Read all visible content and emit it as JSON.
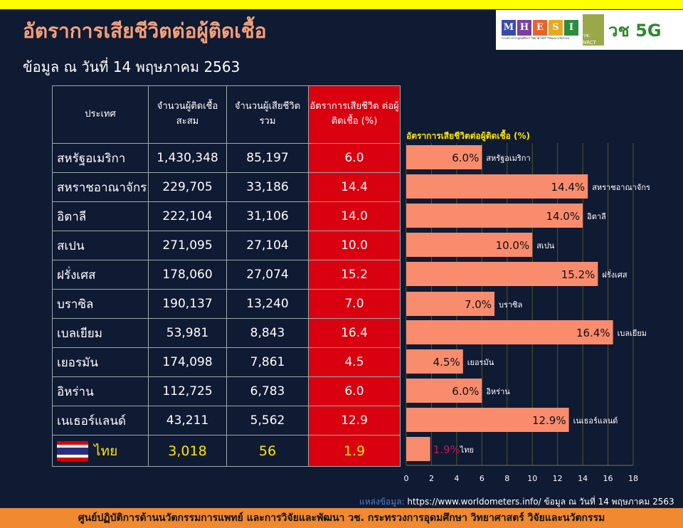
{
  "header": {
    "title": "อัตราการเสียชีวิตต่อผู้ติดเชื้อ",
    "subtitle": "ข้อมูล ณ วันที่ 14 พฤษภาคม 2563",
    "logo_letters": [
      "M",
      "H",
      "E",
      "S",
      "I"
    ],
    "logo_sub": "กระทรวงการอุดมศึกษา วิทยาศาสตร์ วิจัยและนวัตกรรม",
    "nrct": "วช. NRCT",
    "v5g": "วช 5G"
  },
  "table": {
    "headers": [
      "ประเทศ",
      "จำนวนผู้ติดเชื้อ สะสม",
      "จำนวนผู้เสียชีวิต รวม",
      "อัตราการเสียชีวิต ต่อผู้ติดเชื้อ (%)"
    ],
    "rows": [
      [
        "สหรัฐอเมริกา",
        "1,430,348",
        "85,197",
        "6.0"
      ],
      [
        "สหราชอาณาจักร",
        "229,705",
        "33,186",
        "14.4"
      ],
      [
        "อิตาลี",
        "222,104",
        "31,106",
        "14.0"
      ],
      [
        "สเปน",
        "271,095",
        "27,104",
        "10.0"
      ],
      [
        "ฝรั่งเศส",
        "178,060",
        "27,074",
        "15.2"
      ],
      [
        "บราซิล",
        "190,137",
        "13,240",
        "7.0"
      ],
      [
        "เบลเยียม",
        "53,981",
        "8,843",
        "16.4"
      ],
      [
        "เยอรมัน",
        "174,098",
        "7,861",
        "4.5"
      ],
      [
        "อิหร่าน",
        "112,725",
        "6,783",
        "6.0"
      ],
      [
        "เนเธอร์แลนด์",
        "43,211",
        "5,562",
        "12.9"
      ]
    ],
    "thai": [
      "ไทย",
      "3,018",
      "56",
      "1.9"
    ]
  },
  "chart_data": {
    "type": "bar",
    "orientation": "horizontal",
    "title": "อัตราการเสียชีวิตต่อผู้ติดเชื้อ (%)",
    "categories": [
      "สหรัฐอเมริกา",
      "สหราชอาณาจักร",
      "อิตาลี",
      "สเปน",
      "ฝรั่งเศส",
      "บราซิล",
      "เบลเยียม",
      "เยอรมัน",
      "อิหร่าน",
      "เนเธอร์แลนด์",
      "ไทย"
    ],
    "values": [
      6.0,
      14.4,
      14.0,
      10.0,
      15.2,
      7.0,
      16.4,
      4.5,
      6.0,
      12.9,
      1.9
    ],
    "data_labels": [
      "6.0%",
      "14.4%",
      "14.0%",
      "10.0%",
      "15.2%",
      "7.0%",
      "16.4%",
      "4.5%",
      "6.0%",
      "12.9%",
      "1.9%"
    ],
    "xlim": [
      0,
      18
    ],
    "xticks": [
      0,
      2,
      4,
      6,
      8,
      10,
      12,
      14,
      16,
      18
    ],
    "bar_color": "#fa8c6e",
    "highlight_label_color": "#c2185b"
  },
  "source": {
    "label": "แหล่งข้อมูล:",
    "text": " https://www.worldometers.info/ ข้อมูล ณ วันที่ 14 พฤษภาคม 2563"
  },
  "footer": "ศูนย์ปฏิบัติการด้านนวัตกรรมการแพทย์ และการวิจัยและพัฒนา วช.   กระทรวงการอุดมศึกษา วิทยาศาสตร์ วิจัยและนวัตกรรม"
}
